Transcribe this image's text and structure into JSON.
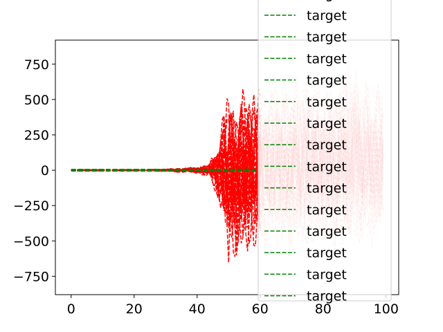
{
  "chart_data": {
    "type": "line",
    "title": "",
    "xlabel": "",
    "ylabel": "",
    "xlim": [
      -5,
      104
    ],
    "ylim": [
      -880,
      920
    ],
    "xticks": [
      0,
      20,
      40,
      60,
      80,
      100
    ],
    "xtick_labels": [
      "0",
      "20",
      "40",
      "60",
      "80",
      "100"
    ],
    "yticks": [
      -750,
      -500,
      -250,
      0,
      250,
      500,
      750
    ],
    "ytick_labels": [
      "−750",
      "−500",
      "−250",
      "0",
      "250",
      "500",
      "750"
    ],
    "grid": false,
    "legend_position": "upper-right (overflowing axes)",
    "colors": {
      "prediction": "#ff0000",
      "target": "#008000"
    },
    "series": [
      {
        "name": "",
        "role": "prediction",
        "style": "dashed",
        "x_range": [
          0,
          99
        ],
        "envelope_x": [
          0,
          20,
          30,
          40,
          44,
          46,
          48,
          50,
          52,
          54,
          56,
          58,
          60,
          65,
          70,
          75,
          80,
          85,
          90,
          95,
          99
        ],
        "envelope_max": [
          5,
          5,
          10,
          25,
          60,
          200,
          450,
          600,
          620,
          650,
          640,
          660,
          700,
          700,
          700,
          780,
          700,
          720,
          850,
          700,
          700
        ],
        "envelope_min": [
          -5,
          -5,
          -10,
          -25,
          -60,
          -200,
          -400,
          -800,
          -680,
          -700,
          -690,
          -650,
          -650,
          -640,
          -640,
          -640,
          -620,
          -640,
          -640,
          -620,
          -600
        ],
        "note": "opaque red for x<60, faded (light pink) for x>=60"
      },
      {
        "name": "target",
        "role": "target",
        "style": "dashed",
        "x_range": [
          0,
          99
        ],
        "values_approx": 0
      }
    ],
    "legend": {
      "entries": [
        "target",
        "target",
        "target",
        "target",
        "target",
        "target",
        "target",
        "target",
        "target",
        "target",
        "target",
        "target",
        "target",
        "target"
      ]
    }
  }
}
